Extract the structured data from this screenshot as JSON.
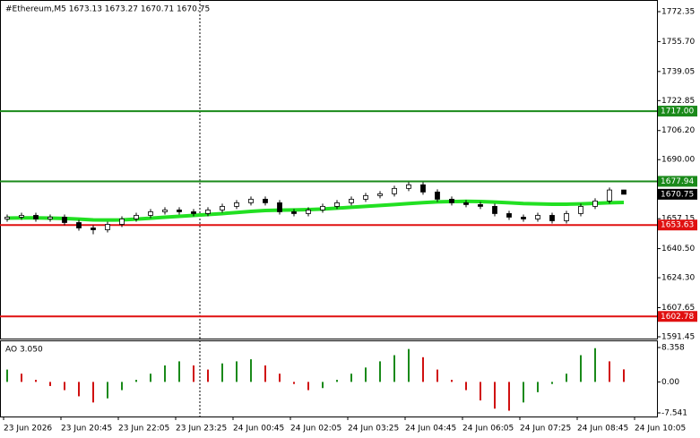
{
  "chart_data": {
    "type": "candlestick",
    "title": "#Ethereum,M5  1673.13 1673.27 1670.71 1670.75",
    "open": [
      1657,
      1658,
      1659,
      1657,
      1658,
      1655,
      1652,
      1651,
      1654,
      1657,
      1659,
      1661,
      1662,
      1661,
      1660,
      1662,
      1664,
      1666,
      1668,
      1666,
      1661,
      1660,
      1662,
      1664,
      1666,
      1668,
      1670,
      1671,
      1674,
      1676,
      1672,
      1668,
      1666,
      1665,
      1664,
      1660,
      1658,
      1657,
      1659,
      1656,
      1660,
      1664,
      1667,
      1673.13
    ],
    "high": [
      1659.5,
      1660.5,
      1660.5,
      1659.5,
      1659.5,
      1656.5,
      1653.5,
      1655.5,
      1658.5,
      1660.5,
      1662.5,
      1663.5,
      1663.5,
      1662.5,
      1663.5,
      1665.5,
      1667.5,
      1669.5,
      1669.5,
      1667.5,
      1662.5,
      1663.5,
      1665.5,
      1667.5,
      1669.5,
      1671.5,
      1672.5,
      1675.5,
      1677.5,
      1677.5,
      1673.5,
      1669.5,
      1667.5,
      1666.5,
      1665.5,
      1661.5,
      1659.5,
      1660.5,
      1660.5,
      1661.5,
      1665.5,
      1668.5,
      1674.5,
      1673.27
    ],
    "low": [
      1655.5,
      1656.5,
      1655.5,
      1655.5,
      1653.5,
      1650.5,
      1648.5,
      1649.5,
      1652.5,
      1655.5,
      1657.5,
      1659.5,
      1659.5,
      1658.5,
      1658.5,
      1660.5,
      1662.5,
      1664.5,
      1664.5,
      1659.5,
      1658.5,
      1658.5,
      1660.5,
      1662.5,
      1664.5,
      1666.5,
      1668.5,
      1669.5,
      1672.5,
      1670.5,
      1666.5,
      1664.5,
      1663.5,
      1662.5,
      1658.5,
      1656.5,
      1655.5,
      1655.5,
      1654.5,
      1654.5,
      1658.5,
      1662.5,
      1665.5,
      1670.71
    ],
    "close": [
      1658,
      1659,
      1657,
      1658,
      1655,
      1652,
      1651,
      1654,
      1657,
      1659,
      1661,
      1662,
      1661,
      1660,
      1662,
      1664,
      1666,
      1668,
      1666,
      1661,
      1660,
      1662,
      1664,
      1666,
      1668,
      1670,
      1671,
      1674,
      1676,
      1672,
      1668,
      1666,
      1665,
      1664,
      1660,
      1658,
      1657,
      1659,
      1656,
      1660,
      1664,
      1667,
      1673.13,
      1670.75
    ],
    "ma": {
      "color": "#22e022",
      "values": [
        1657.5,
        1657.6,
        1657.6,
        1657.5,
        1657.3,
        1656.9,
        1656.5,
        1656.4,
        1656.5,
        1656.9,
        1657.4,
        1658,
        1658.5,
        1659,
        1659.5,
        1660,
        1660.6,
        1661.2,
        1661.7,
        1661.9,
        1662,
        1662.2,
        1662.5,
        1663,
        1663.5,
        1664,
        1664.5,
        1665,
        1665.6,
        1666.1,
        1666.5,
        1666.7,
        1666.8,
        1666.7,
        1666.4,
        1666,
        1665.6,
        1665.4,
        1665.2,
        1665.2,
        1665.4,
        1665.7,
        1666,
        1666.2
      ]
    },
    "ylim": [
      1590.45,
      1778.83
    ],
    "yticks": [
      {
        "value": 1772.35,
        "label": "1772.35"
      },
      {
        "value": 1755.7,
        "label": "1755.70"
      },
      {
        "value": 1739.05,
        "label": "1739.05"
      },
      {
        "value": 1722.85,
        "label": "1722.85"
      },
      {
        "value": 1706.2,
        "label": "1706.20"
      },
      {
        "value": 1690,
        "label": "1690.00"
      },
      {
        "value": 1657.15,
        "label": "1657.15"
      },
      {
        "value": 1640.5,
        "label": "1640.50"
      },
      {
        "value": 1624.3,
        "label": "1624.30"
      },
      {
        "value": 1607.65,
        "label": "1607.65"
      },
      {
        "value": 1591.45,
        "label": "1591.45"
      }
    ],
    "levels": [
      {
        "value": 1717,
        "label": "1717.00",
        "color": "#1a8a1a"
      },
      {
        "value": 1677.94,
        "label": "1677.94",
        "color": "#1a8a1a"
      },
      {
        "value": 1653.63,
        "label": "1653.63",
        "color": "#e01010"
      },
      {
        "value": 1602.78,
        "label": "1602.78",
        "color": "#e01010"
      }
    ],
    "last_price": {
      "value": 1670.75,
      "label": "1670.75"
    },
    "x_labels": [
      "23 Jun 2026",
      "23 Jun 20:45",
      "23 Jun 22:05",
      "23 Jun 23:25",
      "24 Jun 00:45",
      "24 Jun 02:05",
      "24 Jun 03:25",
      "24 Jun 04:45",
      "24 Jun 06:05",
      "24 Jun 07:25",
      "24 Jun 08:45",
      "24 Jun 10:05"
    ],
    "oscillator": {
      "title": "AO 3.050",
      "up_color": "#1a8a1a",
      "down_color": "#d01010",
      "values": [
        3,
        2,
        0.5,
        -1,
        -2,
        -3.5,
        -5,
        -4,
        -2,
        0.5,
        2,
        4,
        5,
        4,
        3,
        4.5,
        5,
        5.5,
        4,
        2,
        -0.5,
        -2,
        -1.5,
        0.5,
        2,
        3.5,
        5,
        6.5,
        8,
        6,
        3,
        0.5,
        -2,
        -4.5,
        -6.5,
        -7,
        -5,
        -2.5,
        -0.5,
        2,
        6.5,
        8.2,
        5,
        3.05
      ],
      "ylim": [
        -8.41,
        9.88
      ],
      "yticks": [
        {
          "value": 8.358,
          "label": "8.358"
        },
        {
          "value": 0,
          "label": "0.00"
        },
        {
          "value": -7.541,
          "label": "-7.541"
        }
      ]
    }
  }
}
